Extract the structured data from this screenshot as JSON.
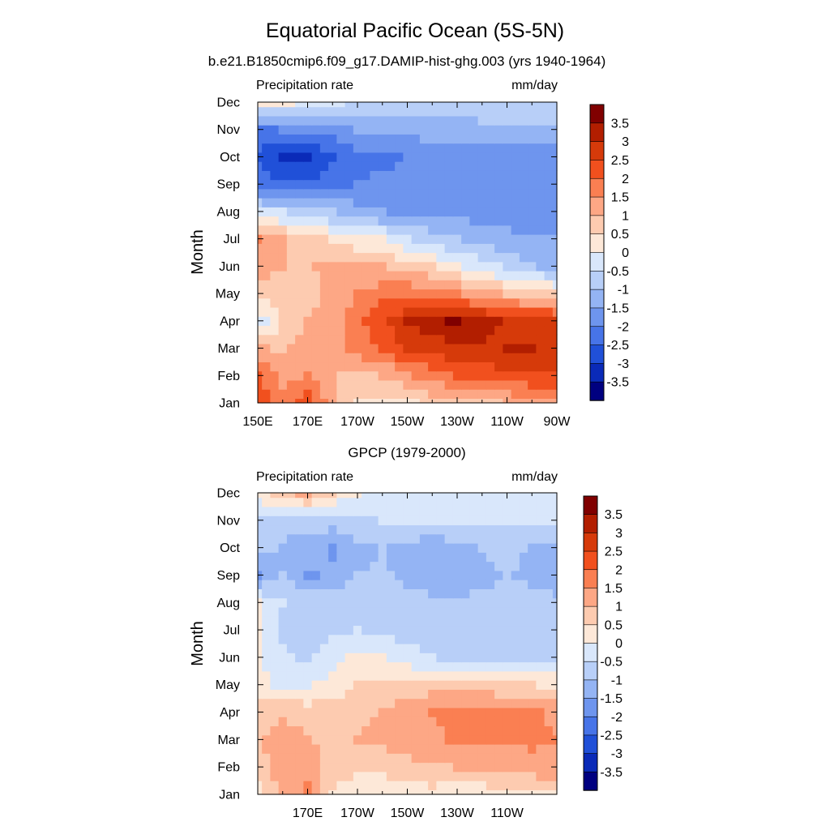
{
  "figure": {
    "title": "Equatorial Pacific Ocean (5S-5N)",
    "subtitle": "b.e21.B1850cmip6.f09_g17.DAMIP-hist-ghg.003 (yrs 1940-1964)",
    "panel2_title": "GPCP (1979-2000)"
  },
  "chart_data": [
    {
      "type": "heatmap",
      "title": "Equatorial Pacific Ocean (5S-5N)",
      "subtitle": "b.e21.B1850cmip6.f09_g17.DAMIP-hist-ghg.003 (yrs 1940-1964)",
      "left_label": "Precipitation rate",
      "right_label": "mm/day",
      "ylabel": "Month",
      "xlabel": "",
      "x_tick_labels": [
        "150E",
        "170E",
        "170W",
        "150W",
        "130W",
        "110W",
        "90W"
      ],
      "y_tick_labels": [
        "Jan",
        "Feb",
        "Mar",
        "Apr",
        "May",
        "Jun",
        "Jul",
        "Aug",
        "Sep",
        "Oct",
        "Nov",
        "Dec"
      ],
      "colorbar": {
        "labels": [
          "3.5",
          "3",
          "2.5",
          "2",
          "1.5",
          "1",
          "0.5",
          "0",
          "-0.5",
          "-1",
          "-1.5",
          "-2",
          "-2.5",
          "-3",
          "-3.5"
        ],
        "colors": [
          "#800000",
          "#b21e00",
          "#d63a0a",
          "#f1501e",
          "#fa7f52",
          "#fda785",
          "#fdcbb0",
          "#fde8d8",
          "#d9e7fb",
          "#b8cff8",
          "#94b4f4",
          "#6e95ee",
          "#4774e8",
          "#2050d8",
          "#0a2ab8",
          "#000080"
        ]
      },
      "x": [
        "150E",
        "160E",
        "170E",
        "180",
        "170W",
        "160W",
        "150W",
        "140W",
        "130W",
        "120W",
        "110W",
        "100W",
        "90W"
      ],
      "y": [
        "Jan",
        "Feb",
        "Mar",
        "Apr",
        "May",
        "Jun",
        "Jul",
        "Aug",
        "Sep",
        "Oct",
        "Nov",
        "Dec"
      ],
      "z": [
        [
          2.3,
          1.6,
          2.3,
          1.2,
          0.4,
          0.3,
          0.4,
          0.6,
          0.7,
          0.9,
          1.0,
          1.2,
          1.3
        ],
        [
          2.2,
          1.3,
          1.5,
          1.0,
          0.8,
          1.0,
          1.4,
          1.8,
          2.0,
          2.2,
          2.4,
          2.4,
          2.4
        ],
        [
          1.1,
          0.9,
          1.2,
          1.3,
          1.7,
          2.1,
          2.5,
          2.7,
          2.9,
          2.9,
          3.0,
          3.0,
          2.9
        ],
        [
          -0.3,
          0.5,
          1.0,
          1.2,
          1.8,
          2.4,
          3.0,
          3.3,
          3.6,
          3.2,
          2.9,
          2.8,
          2.7
        ],
        [
          0.6,
          0.7,
          0.8,
          1.2,
          1.5,
          1.8,
          1.9,
          1.8,
          1.5,
          1.2,
          0.9,
          0.7,
          0.5
        ],
        [
          1.3,
          1.0,
          0.9,
          1.2,
          1.1,
          1.0,
          0.8,
          0.5,
          0.1,
          -0.3,
          -0.6,
          -0.9,
          -1.2
        ],
        [
          1.5,
          1.0,
          0.8,
          0.4,
          0.2,
          0.0,
          -0.4,
          -0.8,
          -1.0,
          -1.2,
          -1.4,
          -1.5,
          -1.5
        ],
        [
          -0.3,
          -0.5,
          -0.8,
          -1.0,
          -1.3,
          -1.5,
          -1.6,
          -1.6,
          -1.7,
          -1.7,
          -1.7,
          -1.7,
          -1.8
        ],
        [
          -2.3,
          -2.5,
          -2.4,
          -2.2,
          -2.0,
          -1.9,
          -1.9,
          -1.8,
          -1.8,
          -1.7,
          -1.8,
          -1.8,
          -1.8
        ],
        [
          -2.6,
          -3.1,
          -3.2,
          -2.6,
          -2.2,
          -2.1,
          -2.0,
          -1.8,
          -1.8,
          -1.8,
          -1.8,
          -1.8,
          -1.8
        ],
        [
          -2.1,
          -2.0,
          -2.0,
          -1.7,
          -1.5,
          -1.4,
          -1.3,
          -1.3,
          -1.2,
          -1.2,
          -1.2,
          -1.2,
          -1.2
        ],
        [
          0.0,
          0.2,
          -0.2,
          -0.4,
          -0.6,
          -0.6,
          -0.6,
          -0.6,
          -0.7,
          -0.6,
          -0.6,
          -0.6,
          -0.6
        ]
      ]
    },
    {
      "type": "heatmap",
      "title": "GPCP (1979-2000)",
      "left_label": "Precipitation rate",
      "right_label": "mm/day",
      "ylabel": "Month",
      "xlabel": "",
      "x_tick_labels": [
        "170E",
        "170W",
        "150W",
        "130W",
        "110W"
      ],
      "y_tick_labels": [
        "Jan",
        "Feb",
        "Mar",
        "Apr",
        "May",
        "Jun",
        "Jul",
        "Aug",
        "Sep",
        "Oct",
        "Nov",
        "Dec"
      ],
      "colorbar": {
        "labels": [
          "3.5",
          "3",
          "2.5",
          "2",
          "1.5",
          "1",
          "0.5",
          "0",
          "-0.5",
          "-1",
          "-1.5",
          "-2",
          "-2.5",
          "-3",
          "-3.5"
        ],
        "colors": [
          "#800000",
          "#b21e00",
          "#d63a0a",
          "#f1501e",
          "#fa7f52",
          "#fda785",
          "#fdcbb0",
          "#fde8d8",
          "#d9e7fb",
          "#b8cff8",
          "#94b4f4",
          "#6e95ee",
          "#4774e8",
          "#2050d8",
          "#0a2ab8",
          "#000080"
        ]
      },
      "x": [
        "150E",
        "160E",
        "170E",
        "180",
        "170W",
        "160W",
        "150W",
        "140W",
        "130W",
        "120W",
        "110W",
        "100W",
        "90W"
      ],
      "y": [
        "Jan",
        "Feb",
        "Mar",
        "Apr",
        "May",
        "Jun",
        "Jul",
        "Aug",
        "Sep",
        "Oct",
        "Nov",
        "Dec"
      ],
      "z": [
        [
          0.3,
          1.0,
          1.6,
          0.4,
          0.2,
          0.1,
          0.2,
          0.3,
          0.1,
          0.2,
          0.3,
          0.3,
          0.4
        ],
        [
          0.8,
          1.3,
          1.3,
          0.8,
          0.6,
          0.7,
          0.8,
          0.9,
          1.0,
          1.0,
          1.1,
          1.3,
          1.4
        ],
        [
          0.9,
          1.3,
          1.0,
          0.8,
          1.0,
          1.1,
          1.3,
          1.4,
          1.6,
          1.6,
          1.5,
          1.6,
          1.5
        ],
        [
          0.8,
          0.9,
          0.8,
          0.7,
          0.9,
          1.0,
          1.3,
          1.5,
          1.6,
          1.7,
          1.6,
          1.6,
          1.4
        ],
        [
          0.3,
          -0.2,
          -0.1,
          0.2,
          0.5,
          0.6,
          0.7,
          0.8,
          0.8,
          0.7,
          0.6,
          0.5,
          0.4
        ],
        [
          0.1,
          -0.4,
          -0.6,
          -0.2,
          0.2,
          0.0,
          -0.3,
          -0.5,
          -0.6,
          -0.7,
          -0.8,
          -0.8,
          -0.8
        ],
        [
          0.2,
          -0.6,
          -0.7,
          -0.6,
          -0.5,
          -0.6,
          -0.7,
          -0.8,
          -0.7,
          -0.7,
          -0.6,
          -0.6,
          -0.6
        ],
        [
          0.1,
          -0.5,
          -0.7,
          -0.7,
          -0.7,
          -0.8,
          -0.8,
          -0.9,
          -0.9,
          -0.8,
          -0.7,
          -0.8,
          -0.9
        ],
        [
          -1.6,
          -1.0,
          -1.6,
          -1.4,
          -1.0,
          -0.9,
          -1.1,
          -1.3,
          -1.4,
          -1.3,
          -0.9,
          -1.2,
          -1.3
        ],
        [
          -0.8,
          -1.1,
          -1.3,
          -1.6,
          -1.2,
          -1.0,
          -1.2,
          -1.3,
          -1.2,
          -0.9,
          -0.8,
          -1.1,
          -1.2
        ],
        [
          -0.6,
          -0.8,
          -0.8,
          -0.7,
          -0.6,
          -0.5,
          -0.5,
          -0.5,
          -0.5,
          -0.5,
          -0.5,
          -0.5,
          -0.5
        ],
        [
          0.3,
          0.8,
          1.2,
          0.5,
          0.0,
          -0.3,
          -0.4,
          -0.4,
          -0.4,
          -0.4,
          -0.4,
          -0.4,
          -0.5
        ]
      ]
    }
  ]
}
